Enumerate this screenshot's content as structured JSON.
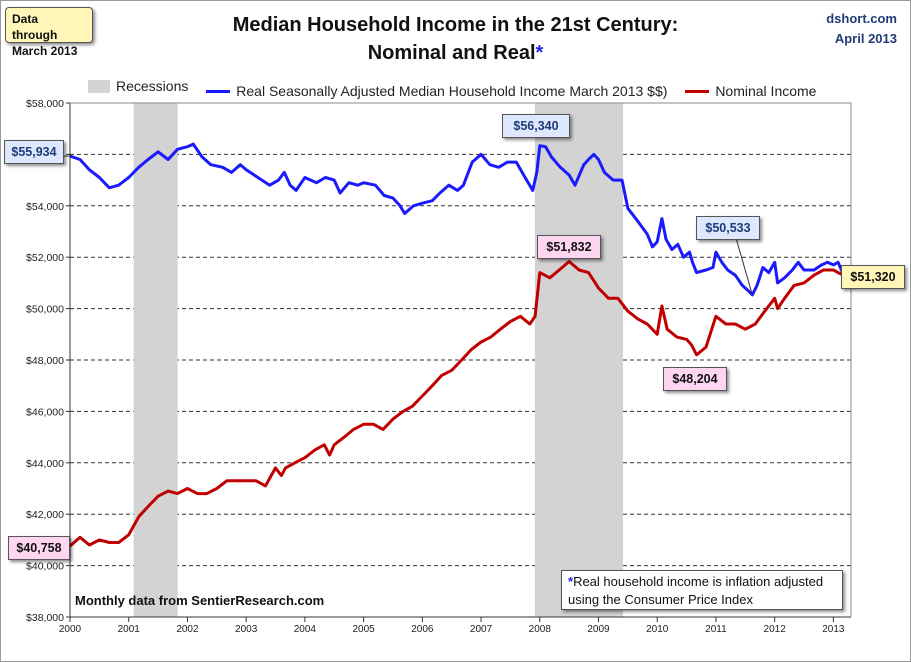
{
  "header": {
    "data_through": "Data through March 2013",
    "title_line1": "Median Household Income in the 21st Century:",
    "title_line2": "Nominal and Real",
    "title_star": "*",
    "source": "dshort.com",
    "date": "April 2013"
  },
  "legend": {
    "recessions": "Recessions",
    "real": "Real Seasonally Adjusted Median Household Income March 2013 $$)",
    "nominal": "Nominal Income"
  },
  "colors": {
    "real": "#1a1aff",
    "nominal": "#c00000",
    "recession": "#d3d3d3"
  },
  "footnote": {
    "star": "*",
    "line1": "Real household  income is inflation adjusted",
    "line2": "using  the Consumer Price Index"
  },
  "monthly_note": "Monthly data from SentierResearch.com",
  "callouts": {
    "real_start": "$55,934",
    "real_peak": "$56,340",
    "real_low": "$50,533",
    "real_end": "$51,320",
    "nominal_start": "$40,758",
    "nominal_peak": "$51,832",
    "nominal_low": "$48,204"
  },
  "chart_data": {
    "type": "line",
    "x_unit": "year",
    "xlim": [
      2000,
      2013.3
    ],
    "ylim": [
      38000,
      58000
    ],
    "y_ticks": [
      "$38,000",
      "$40,000",
      "$42,000",
      "$44,000",
      "$46,000",
      "$48,000",
      "$50,000",
      "$52,000",
      "$54,000",
      "$56,000",
      "$58,000"
    ],
    "y_tick_values": [
      38000,
      40000,
      42000,
      44000,
      46000,
      48000,
      50000,
      52000,
      54000,
      56000,
      58000
    ],
    "x_ticks": [
      "2000",
      "2001",
      "2002",
      "2003",
      "2004",
      "2005",
      "2006",
      "2007",
      "2008",
      "2009",
      "2010",
      "2011",
      "2012",
      "2013"
    ],
    "x_tick_values": [
      2000,
      2001,
      2002,
      2003,
      2004,
      2005,
      2006,
      2007,
      2008,
      2009,
      2010,
      2011,
      2012,
      2013
    ],
    "grid": "horizontal dashed",
    "recessions": [
      [
        2001.083,
        2001.833
      ],
      [
        2007.917,
        2009.417
      ]
    ],
    "series": [
      {
        "name": "Real Seasonally Adjusted Median Household Income March 2013 $$)",
        "points": [
          [
            2000.0,
            55934
          ],
          [
            2000.17,
            55800
          ],
          [
            2000.33,
            55400
          ],
          [
            2000.5,
            55100
          ],
          [
            2000.67,
            54700
          ],
          [
            2000.83,
            54800
          ],
          [
            2001.0,
            55100
          ],
          [
            2001.17,
            55500
          ],
          [
            2001.33,
            55800
          ],
          [
            2001.5,
            56100
          ],
          [
            2001.67,
            55800
          ],
          [
            2001.83,
            56200
          ],
          [
            2002.0,
            56300
          ],
          [
            2002.1,
            56400
          ],
          [
            2002.25,
            55900
          ],
          [
            2002.4,
            55600
          ],
          [
            2002.6,
            55500
          ],
          [
            2002.75,
            55300
          ],
          [
            2002.9,
            55600
          ],
          [
            2003.0,
            55400
          ],
          [
            2003.2,
            55100
          ],
          [
            2003.4,
            54800
          ],
          [
            2003.55,
            55000
          ],
          [
            2003.65,
            55300
          ],
          [
            2003.75,
            54800
          ],
          [
            2003.85,
            54600
          ],
          [
            2004.0,
            55100
          ],
          [
            2004.2,
            54900
          ],
          [
            2004.35,
            55100
          ],
          [
            2004.5,
            55000
          ],
          [
            2004.6,
            54500
          ],
          [
            2004.75,
            54900
          ],
          [
            2004.9,
            54800
          ],
          [
            2005.0,
            54900
          ],
          [
            2005.2,
            54800
          ],
          [
            2005.35,
            54400
          ],
          [
            2005.5,
            54300
          ],
          [
            2005.62,
            54000
          ],
          [
            2005.7,
            53700
          ],
          [
            2005.85,
            54000
          ],
          [
            2006.0,
            54100
          ],
          [
            2006.17,
            54200
          ],
          [
            2006.3,
            54500
          ],
          [
            2006.45,
            54800
          ],
          [
            2006.6,
            54600
          ],
          [
            2006.7,
            54800
          ],
          [
            2006.85,
            55700
          ],
          [
            2006.95,
            55900
          ],
          [
            2007.0,
            56000
          ],
          [
            2007.15,
            55600
          ],
          [
            2007.3,
            55500
          ],
          [
            2007.45,
            55700
          ],
          [
            2007.6,
            55700
          ],
          [
            2007.75,
            55100
          ],
          [
            2007.88,
            54600
          ],
          [
            2007.95,
            55300
          ],
          [
            2008.0,
            56340
          ],
          [
            2008.1,
            56300
          ],
          [
            2008.2,
            55900
          ],
          [
            2008.35,
            55500
          ],
          [
            2008.5,
            55200
          ],
          [
            2008.6,
            54800
          ],
          [
            2008.75,
            55600
          ],
          [
            2008.83,
            55800
          ],
          [
            2008.92,
            56000
          ],
          [
            2009.0,
            55800
          ],
          [
            2009.1,
            55300
          ],
          [
            2009.25,
            55000
          ],
          [
            2009.4,
            55000
          ],
          [
            2009.5,
            53900
          ],
          [
            2009.67,
            53400
          ],
          [
            2009.83,
            52900
          ],
          [
            2009.92,
            52400
          ],
          [
            2010.0,
            52600
          ],
          [
            2010.08,
            53500
          ],
          [
            2010.15,
            52700
          ],
          [
            2010.25,
            52300
          ],
          [
            2010.35,
            52500
          ],
          [
            2010.45,
            52000
          ],
          [
            2010.55,
            52200
          ],
          [
            2010.6,
            51800
          ],
          [
            2010.67,
            51400
          ],
          [
            2010.83,
            51500
          ],
          [
            2010.95,
            51600
          ],
          [
            2011.0,
            52200
          ],
          [
            2011.1,
            51800
          ],
          [
            2011.2,
            51500
          ],
          [
            2011.33,
            51300
          ],
          [
            2011.45,
            50900
          ],
          [
            2011.55,
            50700
          ],
          [
            2011.62,
            50533
          ],
          [
            2011.7,
            50900
          ],
          [
            2011.8,
            51600
          ],
          [
            2011.9,
            51400
          ],
          [
            2012.0,
            51800
          ],
          [
            2012.05,
            51000
          ],
          [
            2012.17,
            51200
          ],
          [
            2012.3,
            51500
          ],
          [
            2012.4,
            51800
          ],
          [
            2012.5,
            51500
          ],
          [
            2012.67,
            51500
          ],
          [
            2012.8,
            51700
          ],
          [
            2012.9,
            51800
          ],
          [
            2013.0,
            51700
          ],
          [
            2013.08,
            51800
          ],
          [
            2013.17,
            51320
          ]
        ]
      },
      {
        "name": "Nominal Income",
        "points": [
          [
            2000.0,
            40758
          ],
          [
            2000.17,
            41100
          ],
          [
            2000.33,
            40800
          ],
          [
            2000.5,
            41000
          ],
          [
            2000.67,
            40900
          ],
          [
            2000.83,
            40900
          ],
          [
            2001.0,
            41200
          ],
          [
            2001.17,
            41900
          ],
          [
            2001.33,
            42300
          ],
          [
            2001.5,
            42700
          ],
          [
            2001.67,
            42900
          ],
          [
            2001.83,
            42800
          ],
          [
            2002.0,
            43000
          ],
          [
            2002.17,
            42800
          ],
          [
            2002.33,
            42800
          ],
          [
            2002.5,
            43000
          ],
          [
            2002.67,
            43300
          ],
          [
            2002.83,
            43300
          ],
          [
            2003.0,
            43300
          ],
          [
            2003.17,
            43300
          ],
          [
            2003.33,
            43100
          ],
          [
            2003.5,
            43800
          ],
          [
            2003.6,
            43500
          ],
          [
            2003.67,
            43800
          ],
          [
            2003.83,
            44000
          ],
          [
            2004.0,
            44200
          ],
          [
            2004.17,
            44500
          ],
          [
            2004.33,
            44700
          ],
          [
            2004.42,
            44300
          ],
          [
            2004.5,
            44700
          ],
          [
            2004.67,
            45000
          ],
          [
            2004.83,
            45300
          ],
          [
            2005.0,
            45500
          ],
          [
            2005.17,
            45500
          ],
          [
            2005.33,
            45300
          ],
          [
            2005.5,
            45700
          ],
          [
            2005.67,
            46000
          ],
          [
            2005.83,
            46200
          ],
          [
            2006.0,
            46600
          ],
          [
            2006.17,
            47000
          ],
          [
            2006.33,
            47400
          ],
          [
            2006.5,
            47600
          ],
          [
            2006.67,
            48000
          ],
          [
            2006.83,
            48400
          ],
          [
            2007.0,
            48700
          ],
          [
            2007.17,
            48900
          ],
          [
            2007.33,
            49200
          ],
          [
            2007.5,
            49500
          ],
          [
            2007.67,
            49700
          ],
          [
            2007.83,
            49400
          ],
          [
            2007.92,
            49700
          ],
          [
            2008.0,
            51400
          ],
          [
            2008.17,
            51200
          ],
          [
            2008.33,
            51500
          ],
          [
            2008.5,
            51832
          ],
          [
            2008.67,
            51500
          ],
          [
            2008.83,
            51400
          ],
          [
            2009.0,
            50800
          ],
          [
            2009.17,
            50400
          ],
          [
            2009.33,
            50400
          ],
          [
            2009.5,
            49900
          ],
          [
            2009.67,
            49600
          ],
          [
            2009.83,
            49400
          ],
          [
            2010.0,
            49000
          ],
          [
            2010.08,
            50100
          ],
          [
            2010.17,
            49200
          ],
          [
            2010.33,
            48900
          ],
          [
            2010.5,
            48800
          ],
          [
            2010.58,
            48600
          ],
          [
            2010.67,
            48204
          ],
          [
            2010.83,
            48500
          ],
          [
            2011.0,
            49700
          ],
          [
            2011.17,
            49400
          ],
          [
            2011.33,
            49400
          ],
          [
            2011.5,
            49200
          ],
          [
            2011.67,
            49400
          ],
          [
            2011.83,
            49900
          ],
          [
            2012.0,
            50400
          ],
          [
            2012.05,
            50000
          ],
          [
            2012.17,
            50400
          ],
          [
            2012.33,
            50900
          ],
          [
            2012.5,
            51000
          ],
          [
            2012.67,
            51300
          ],
          [
            2012.83,
            51500
          ],
          [
            2013.0,
            51500
          ],
          [
            2013.08,
            51400
          ],
          [
            2013.17,
            51300
          ]
        ]
      }
    ]
  }
}
